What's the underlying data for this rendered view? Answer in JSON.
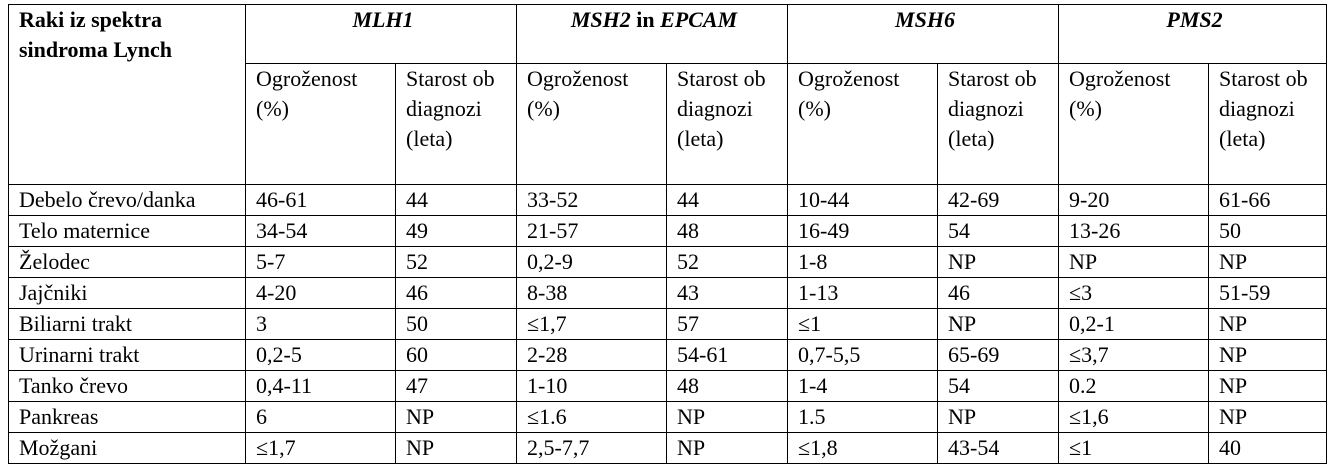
{
  "table": {
    "corner": "Raki iz spektra sindroma Lynch",
    "genes": [
      [
        "MLH1"
      ],
      [
        "MSH2",
        " in ",
        "EPCAM"
      ],
      [
        "MSH6"
      ],
      [
        "PMS2"
      ]
    ],
    "columns": [
      "Ogroženost (%)",
      "Starost ob diagnozi (leta)",
      "Ogroženost (%)",
      "Starost ob diagnozi (leta)",
      "Ogroženost (%)",
      "Starost ob diagnozi (leta)",
      "Ogroženost (%)",
      "Starost ob diagnozi (leta)"
    ],
    "rows": [
      [
        "Debelo črevo/danka",
        "46-61",
        "44",
        "33-52",
        "44",
        "10-44",
        "42-69",
        "9-20",
        "61-66"
      ],
      [
        "Telo maternice",
        "34-54",
        "49",
        "21-57",
        "48",
        "16-49",
        "54",
        "13-26",
        "50"
      ],
      [
        "Želodec",
        "5-7",
        "52",
        "0,2-9",
        "52",
        "1-8",
        "NP",
        "NP",
        "NP"
      ],
      [
        "Jajčniki",
        "4-20",
        "46",
        "8-38",
        "43",
        "1-13",
        "46",
        "≤3",
        "51-59"
      ],
      [
        "Biliarni trakt",
        "3",
        "50",
        "≤1,7",
        "57",
        "≤1",
        "NP",
        "0,2-1",
        "NP"
      ],
      [
        "Urinarni trakt",
        "0,2-5",
        "60",
        "2-28",
        "54-61",
        "0,7-5,5",
        "65-69",
        "≤3,7",
        "NP"
      ],
      [
        "Tanko črevo",
        "0,4-11",
        "47",
        "1-10",
        "48",
        "1-4",
        "54",
        "0.2",
        "NP"
      ],
      [
        "Pankreas",
        "6",
        "NP",
        "≤1.6",
        "NP",
        "1.5",
        "NP",
        "≤1,6",
        "NP"
      ],
      [
        "Možgani",
        "≤1,7",
        "NP",
        "2,5-7,7",
        "NP",
        "≤1,8",
        "43-54",
        "≤1",
        "40"
      ]
    ]
  }
}
